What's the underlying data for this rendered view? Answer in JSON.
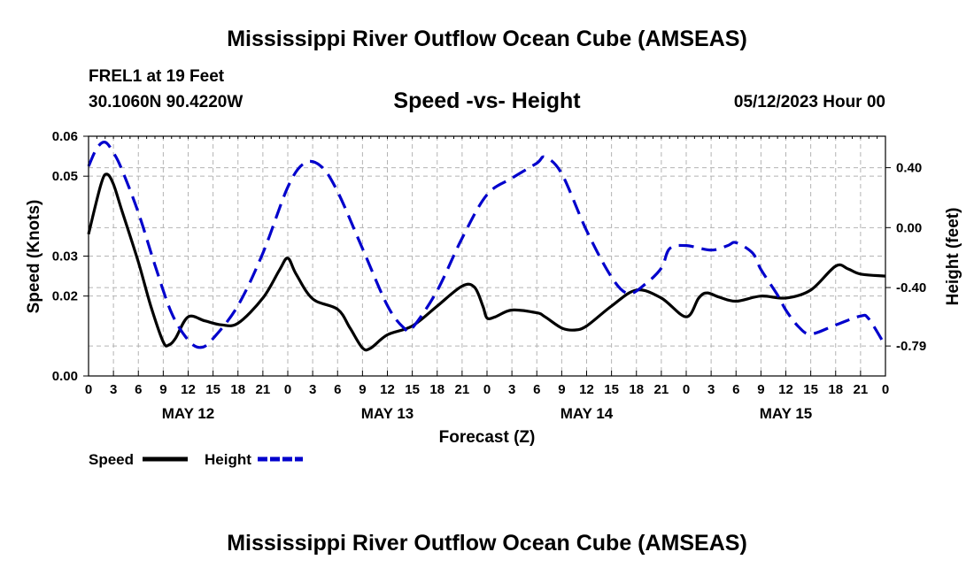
{
  "chart_data": {
    "type": "line",
    "title": "Mississippi River Outflow Ocean Cube (AMSEAS)",
    "station": "FREL1 at 19 Feet",
    "coords": "30.1060N  90.4220W",
    "subtitle": "Speed -vs- Height",
    "date": "05/12/2023 Hour 00",
    "xlabel": "Forecast (Z)",
    "ylabel_left": "Speed (Knots)",
    "ylabel_right": "Height (feet)",
    "x_range_hours": [
      0,
      96
    ],
    "ylim_left": [
      0,
      0.06
    ],
    "yticks_left": [
      {
        "value": 0.0,
        "label": "0.00"
      },
      {
        "value": 0.02,
        "label": "0.02"
      },
      {
        "value": 0.03,
        "label": "0.03"
      },
      {
        "value": 0.05,
        "label": "0.05"
      },
      {
        "value": 0.06,
        "label": "0.06"
      }
    ],
    "ylim_right": [
      -0.99,
      0.61
    ],
    "yticks_right": [
      {
        "value": 0.4,
        "label": "0.40"
      },
      {
        "value": 0.0,
        "label": "0.00"
      },
      {
        "value": -0.4,
        "label": "-0.40"
      },
      {
        "value": -0.79,
        "label": "-0.79"
      }
    ],
    "xticks": [
      {
        "hour": 0,
        "label": "0"
      },
      {
        "hour": 3,
        "label": "3"
      },
      {
        "hour": 6,
        "label": "6"
      },
      {
        "hour": 9,
        "label": "9"
      },
      {
        "hour": 12,
        "label": "12"
      },
      {
        "hour": 15,
        "label": "15"
      },
      {
        "hour": 18,
        "label": "18"
      },
      {
        "hour": 21,
        "label": "21"
      },
      {
        "hour": 24,
        "label": "0"
      },
      {
        "hour": 27,
        "label": "3"
      },
      {
        "hour": 30,
        "label": "6"
      },
      {
        "hour": 33,
        "label": "9"
      },
      {
        "hour": 36,
        "label": "12"
      },
      {
        "hour": 39,
        "label": "15"
      },
      {
        "hour": 42,
        "label": "18"
      },
      {
        "hour": 45,
        "label": "21"
      },
      {
        "hour": 48,
        "label": "0"
      },
      {
        "hour": 51,
        "label": "3"
      },
      {
        "hour": 54,
        "label": "6"
      },
      {
        "hour": 57,
        "label": "9"
      },
      {
        "hour": 60,
        "label": "12"
      },
      {
        "hour": 63,
        "label": "15"
      },
      {
        "hour": 66,
        "label": "18"
      },
      {
        "hour": 69,
        "label": "21"
      },
      {
        "hour": 72,
        "label": "0"
      },
      {
        "hour": 75,
        "label": "3"
      },
      {
        "hour": 78,
        "label": "6"
      },
      {
        "hour": 81,
        "label": "9"
      },
      {
        "hour": 84,
        "label": "12"
      },
      {
        "hour": 87,
        "label": "15"
      },
      {
        "hour": 90,
        "label": "18"
      },
      {
        "hour": 93,
        "label": "21"
      },
      {
        "hour": 96,
        "label": "0"
      }
    ],
    "day_labels": [
      {
        "hour": 12,
        "label": "MAY 12"
      },
      {
        "hour": 36,
        "label": "MAY 13"
      },
      {
        "hour": 60,
        "label": "MAY 14"
      },
      {
        "hour": 84,
        "label": "MAY 15"
      }
    ],
    "series": [
      {
        "name": "Speed",
        "axis": "left",
        "color": "#000000",
        "style": "solid",
        "points": [
          [
            0,
            0.0355
          ],
          [
            1.5,
            0.048
          ],
          [
            2.2,
            0.0505
          ],
          [
            3,
            0.048
          ],
          [
            4,
            0.0415
          ],
          [
            6,
            0.0285
          ],
          [
            7.5,
            0.0175
          ],
          [
            9,
            0.0085
          ],
          [
            9.7,
            0.0078
          ],
          [
            10.5,
            0.0095
          ],
          [
            12,
            0.0148
          ],
          [
            14,
            0.0138
          ],
          [
            16,
            0.0128
          ],
          [
            18,
            0.0132
          ],
          [
            21,
            0.0195
          ],
          [
            23,
            0.0265
          ],
          [
            24,
            0.0295
          ],
          [
            25,
            0.0255
          ],
          [
            27,
            0.0193
          ],
          [
            30,
            0.0167
          ],
          [
            31.5,
            0.012
          ],
          [
            33,
            0.007
          ],
          [
            34,
            0.007
          ],
          [
            36,
            0.0103
          ],
          [
            39,
            0.0125
          ],
          [
            42,
            0.0175
          ],
          [
            45,
            0.0225
          ],
          [
            46.5,
            0.0222
          ],
          [
            47.5,
            0.0175
          ],
          [
            48,
            0.0145
          ],
          [
            49,
            0.0148
          ],
          [
            51,
            0.0165
          ],
          [
            54,
            0.0158
          ],
          [
            55,
            0.0148
          ],
          [
            57,
            0.012
          ],
          [
            58.5,
            0.0115
          ],
          [
            60,
            0.0125
          ],
          [
            63,
            0.0175
          ],
          [
            66,
            0.0215
          ],
          [
            69,
            0.0195
          ],
          [
            72,
            0.0148
          ],
          [
            73.5,
            0.0195
          ],
          [
            74.5,
            0.0208
          ],
          [
            76,
            0.0197
          ],
          [
            78,
            0.0187
          ],
          [
            81,
            0.02
          ],
          [
            84,
            0.0195
          ],
          [
            87,
            0.0215
          ],
          [
            90,
            0.0275
          ],
          [
            91.5,
            0.0268
          ],
          [
            93,
            0.0255
          ],
          [
            96,
            0.025
          ]
        ]
      },
      {
        "name": "Height",
        "axis": "right",
        "color": "#0000cc",
        "style": "dashed",
        "points": [
          [
            0,
            0.41
          ],
          [
            1,
            0.53
          ],
          [
            2,
            0.57
          ],
          [
            3,
            0.5
          ],
          [
            4,
            0.39
          ],
          [
            6,
            0.1
          ],
          [
            8,
            -0.25
          ],
          [
            10,
            -0.57
          ],
          [
            12,
            -0.75
          ],
          [
            13.5,
            -0.8
          ],
          [
            15,
            -0.74
          ],
          [
            18,
            -0.52
          ],
          [
            21,
            -0.17
          ],
          [
            24,
            0.27
          ],
          [
            26,
            0.43
          ],
          [
            28,
            0.41
          ],
          [
            30,
            0.24
          ],
          [
            33,
            -0.14
          ],
          [
            36,
            -0.52
          ],
          [
            38,
            -0.67
          ],
          [
            39,
            -0.67
          ],
          [
            42,
            -0.42
          ],
          [
            45,
            -0.07
          ],
          [
            48,
            0.22
          ],
          [
            51,
            0.33
          ],
          [
            54,
            0.43
          ],
          [
            55,
            0.47
          ],
          [
            57,
            0.36
          ],
          [
            60,
            -0.02
          ],
          [
            63,
            -0.33
          ],
          [
            65,
            -0.44
          ],
          [
            67,
            -0.38
          ],
          [
            69,
            -0.27
          ],
          [
            70,
            -0.14
          ],
          [
            72,
            -0.12
          ],
          [
            75,
            -0.15
          ],
          [
            77,
            -0.12
          ],
          [
            78,
            -0.1
          ],
          [
            80,
            -0.17
          ],
          [
            81,
            -0.28
          ],
          [
            83,
            -0.45
          ],
          [
            84,
            -0.55
          ],
          [
            85.5,
            -0.66
          ],
          [
            87,
            -0.71
          ],
          [
            90,
            -0.65
          ],
          [
            93,
            -0.59
          ],
          [
            94,
            -0.61
          ],
          [
            96,
            -0.79
          ]
        ]
      }
    ],
    "legend": [
      {
        "label": "Speed",
        "color": "#000000",
        "style": "solid"
      },
      {
        "label": "Height",
        "color": "#0000cc",
        "style": "dashed"
      }
    ],
    "grid": true,
    "bottom_title": "Mississippi River Outflow Ocean Cube (AMSEAS)"
  }
}
